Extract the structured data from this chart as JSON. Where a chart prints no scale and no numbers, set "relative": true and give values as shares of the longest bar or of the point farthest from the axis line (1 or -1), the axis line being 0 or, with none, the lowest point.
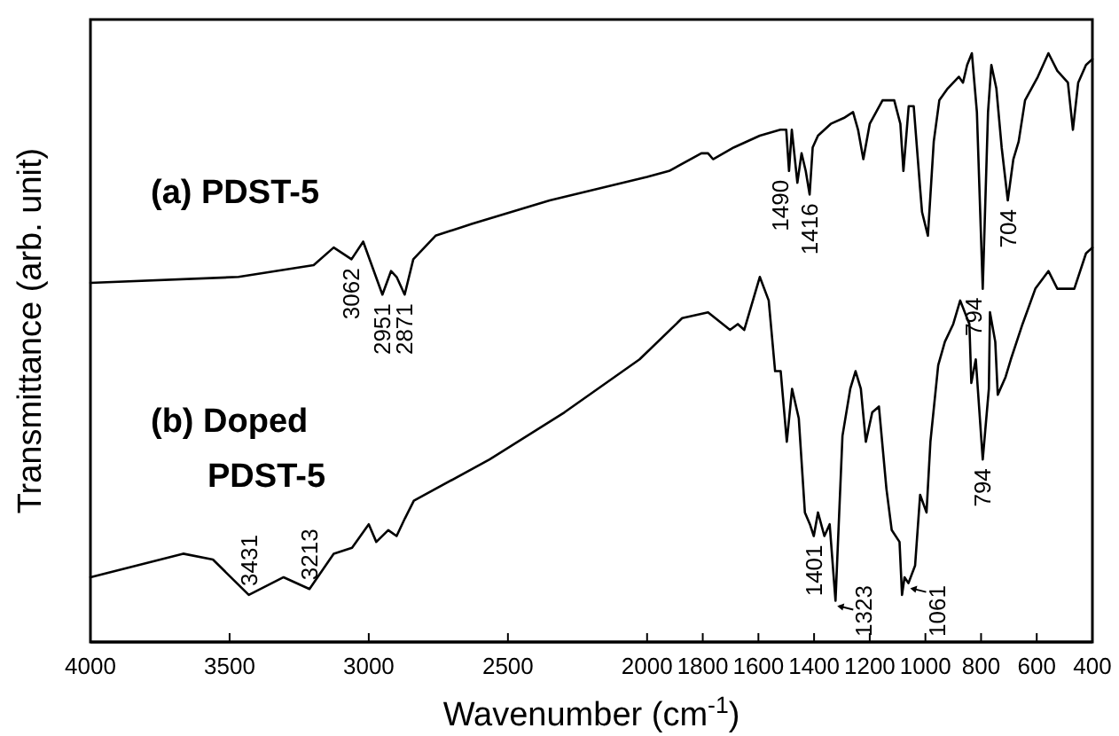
{
  "chart_data": {
    "type": "line",
    "relative": true,
    "xlabel": "Wavenumber (cm$^{-1}$)",
    "ylabel": "Transmittance (arb. unit)",
    "tick_labels": "x",
    "xlim": [
      4000,
      400
    ],
    "xticks": [
      4000,
      3500,
      3000,
      2500,
      2000,
      1800,
      1600,
      1400,
      1200,
      1000,
      800,
      600,
      400
    ],
    "series": [
      {
        "name": "(a) PDST-5",
        "color": "#000000",
        "x": [
          4000,
          3468,
          3198,
          3126,
          3062,
          3020,
          2951,
          2920,
          2900,
          2871,
          2840,
          2760,
          2630,
          2350,
          2000,
          1921,
          1805,
          1781,
          1763,
          1688,
          1595,
          1521,
          1500,
          1490,
          1480,
          1460,
          1445,
          1430,
          1416,
          1405,
          1386,
          1340,
          1293,
          1260,
          1242,
          1223,
          1200,
          1154,
          1112,
          1090,
          1079,
          1060,
          1042,
          1019,
          1012,
          991,
          970,
          950,
          920,
          880,
          865,
          850,
          833,
          815,
          794,
          775,
          763,
          745,
          726,
          704,
          684,
          665,
          642,
          619,
          596,
          558,
          526,
          488,
          470,
          451,
          423,
          400
        ],
        "values": [
          0.61,
          0.62,
          0.64,
          0.67,
          0.65,
          0.68,
          0.59,
          0.63,
          0.62,
          0.59,
          0.65,
          0.69,
          0.71,
          0.75,
          0.79,
          0.8,
          0.83,
          0.83,
          0.82,
          0.84,
          0.86,
          0.87,
          0.87,
          0.8,
          0.87,
          0.78,
          0.83,
          0.8,
          0.76,
          0.84,
          0.86,
          0.88,
          0.89,
          0.9,
          0.87,
          0.82,
          0.88,
          0.92,
          0.92,
          0.88,
          0.8,
          0.91,
          0.91,
          0.77,
          0.73,
          0.69,
          0.85,
          0.92,
          0.94,
          0.96,
          0.95,
          0.98,
          1.0,
          0.9,
          0.6,
          0.9,
          0.98,
          0.94,
          0.84,
          0.75,
          0.82,
          0.85,
          0.92,
          0.94,
          0.96,
          1.0,
          0.97,
          0.95,
          0.87,
          0.95,
          0.98,
          0.99
        ]
      },
      {
        "name": "(b) Doped PDST-5",
        "color": "#000000",
        "x": [
          4000,
          3667,
          3560,
          3431,
          3306,
          3213,
          3126,
          3060,
          3000,
          2973,
          2930,
          2900,
          2870,
          2838,
          2566,
          2297,
          2027,
          1874,
          1781,
          1702,
          1674,
          1651,
          1595,
          1563,
          1540,
          1520,
          1498,
          1479,
          1455,
          1433,
          1415,
          1401,
          1386,
          1363,
          1344,
          1323,
          1298,
          1270,
          1251,
          1232,
          1214,
          1191,
          1167,
          1140,
          1121,
          1093,
          1084,
          1075,
          1061,
          1037,
          1019,
          996,
          982,
          954,
          930,
          900,
          875,
          842,
          835,
          819,
          794,
          772,
          768,
          749,
          740,
          712,
          693,
          651,
          605,
          558,
          526,
          465,
          423,
          400
        ],
        "values": [
          0.11,
          0.15,
          0.14,
          0.08,
          0.11,
          0.09,
          0.15,
          0.16,
          0.2,
          0.17,
          0.19,
          0.18,
          0.21,
          0.24,
          0.31,
          0.39,
          0.48,
          0.55,
          0.56,
          0.53,
          0.54,
          0.53,
          0.62,
          0.58,
          0.46,
          0.46,
          0.34,
          0.43,
          0.38,
          0.22,
          0.2,
          0.18,
          0.22,
          0.18,
          0.2,
          0.07,
          0.35,
          0.43,
          0.46,
          0.43,
          0.34,
          0.39,
          0.4,
          0.26,
          0.19,
          0.17,
          0.08,
          0.11,
          0.1,
          0.13,
          0.25,
          0.22,
          0.34,
          0.47,
          0.51,
          0.54,
          0.58,
          0.54,
          0.44,
          0.48,
          0.31,
          0.43,
          0.56,
          0.51,
          0.42,
          0.45,
          0.48,
          0.54,
          0.6,
          0.63,
          0.6,
          0.6,
          0.66,
          0.67
        ]
      }
    ],
    "annotations": [
      {
        "text": "3062",
        "x": 3062,
        "y": 0.65
      },
      {
        "text": "2951",
        "x": 2951,
        "y": 0.59
      },
      {
        "text": "2871",
        "x": 2871,
        "y": 0.59
      },
      {
        "text": "1490",
        "x": 1490,
        "y": 0.8
      },
      {
        "text": "1416",
        "x": 1416,
        "y": 0.76
      },
      {
        "text": "794",
        "x": 794,
        "y": 0.6
      },
      {
        "text": "704",
        "x": 704,
        "y": 0.75
      },
      {
        "text": "3431",
        "x": 3431,
        "y": 0.08
      },
      {
        "text": "3213",
        "x": 3213,
        "y": 0.09
      },
      {
        "text": "1401",
        "x": 1401,
        "y": 0.18
      },
      {
        "text": "1323",
        "x": 1323,
        "y": 0.07
      },
      {
        "text": "1061",
        "x": 1061,
        "y": 0.1
      },
      {
        "text": "794",
        "x": 794,
        "y": 0.31
      }
    ]
  }
}
